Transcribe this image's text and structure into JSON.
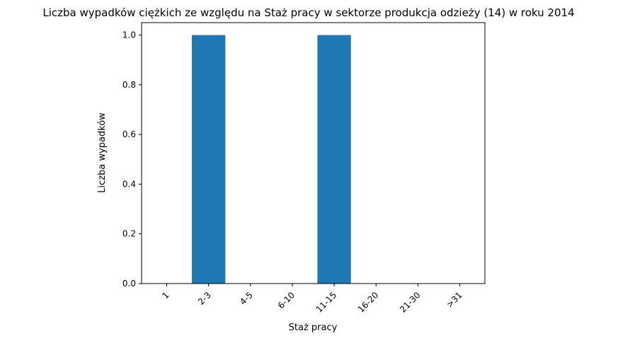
{
  "chart_data": {
    "type": "bar",
    "title": "Liczba wypadków ciężkich ze względu na Staż pracy w sektorze produkcja odzieży  (14)   w roku 2014",
    "xlabel": "Staż pracy",
    "ylabel": "Liczba wypadków",
    "categories": [
      "1",
      "2-3",
      "4-5",
      "6-10",
      "11-15",
      "16-20",
      "21-30",
      ">31"
    ],
    "values": [
      0,
      1,
      0,
      0,
      1,
      0,
      0,
      0
    ],
    "ylim": [
      0,
      1.05
    ],
    "yticks": [
      "0.0",
      "0.2",
      "0.4",
      "0.6",
      "0.8",
      "1.0"
    ],
    "grid": false,
    "bar_color": "#1f77b4"
  }
}
